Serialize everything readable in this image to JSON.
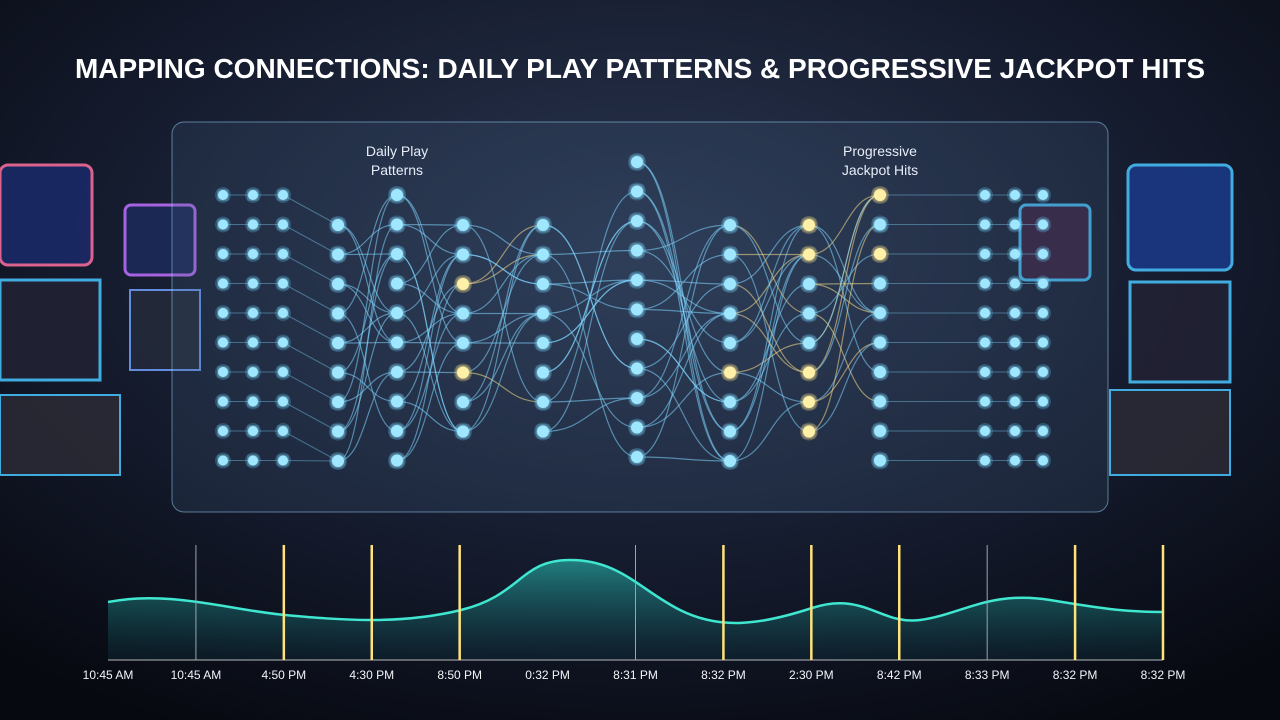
{
  "header": {
    "title": "MAPPING CONNECTIONS: DAILY PLAY PATTERNS & PROGRESSIVE JACKPOT HITS"
  },
  "diagram": {
    "left_label": [
      "Daily Play",
      "Patterns"
    ],
    "right_label": [
      "Progressive",
      "Jackpot Hits"
    ]
  },
  "timeline": {
    "labels": [
      "10:45 AM",
      "10:45 AM",
      "4:50 PM",
      "4:30 PM",
      "8:50 PM",
      "0:32 PM",
      "8:31 PM",
      "8:32 PM",
      "2:30 PM",
      "8:42 PM",
      "8:33 PM",
      "8:32 PM",
      "8:32 PM"
    ]
  }
}
